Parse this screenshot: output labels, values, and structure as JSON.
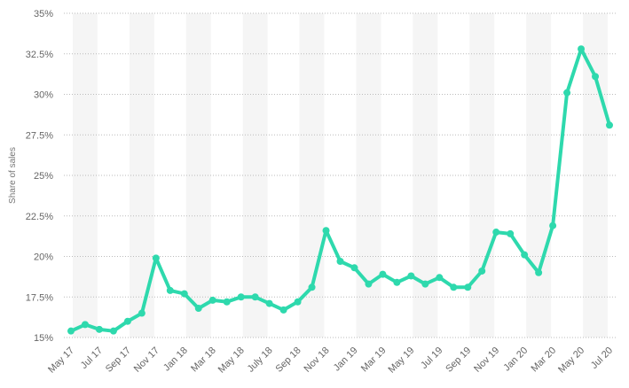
{
  "chart_data": {
    "type": "line",
    "title": "",
    "xlabel": "",
    "ylabel": "Share of sales",
    "x": [
      "May 17",
      "Jun 17",
      "Jul 17",
      "Aug 17",
      "Sep 17",
      "Oct 17",
      "Nov 17",
      "Dec 17",
      "Jan 18",
      "Feb 18",
      "Mar 18",
      "Apr 18",
      "May 18",
      "Jun 18",
      "July 18",
      "Aug 18",
      "Sep 18",
      "Oct 18",
      "Nov 18",
      "Dec 18",
      "Jan 19",
      "Feb 19",
      "Mar 19",
      "Apr 19",
      "May 19",
      "Jun 19",
      "Jul 19",
      "Aug 19",
      "Sep 19",
      "Oct 19",
      "Nov 19",
      "Dec 19",
      "Jan 20",
      "Feb 20",
      "Mar 20",
      "Apr 20",
      "May 20",
      "Jun 20",
      "Jul 20"
    ],
    "x_tick_labels": [
      "May 17",
      "Jul 17",
      "Sep 17",
      "Nov 17",
      "Jan 18",
      "Mar 18",
      "May 18",
      "July 18",
      "Sep 18",
      "Nov 18",
      "Jan 19",
      "Mar 19",
      "May 19",
      "Jul 19",
      "Sep 19",
      "Nov 19",
      "Jan 20",
      "Mar 20",
      "May 20",
      "Jul 20"
    ],
    "series": [
      {
        "values": [
          15.4,
          15.8,
          15.5,
          15.4,
          16.0,
          16.5,
          19.9,
          17.9,
          17.7,
          16.8,
          17.3,
          17.2,
          17.5,
          17.5,
          17.1,
          16.7,
          17.2,
          18.1,
          21.6,
          19.7,
          19.3,
          18.3,
          18.9,
          18.4,
          18.8,
          18.3,
          18.7,
          18.1,
          18.1,
          19.1,
          21.5,
          21.4,
          20.1,
          19.0,
          21.9,
          30.1,
          32.8,
          31.1,
          28.1
        ]
      }
    ],
    "y_ticks": [
      "15%",
      "17.5%",
      "20%",
      "22.5%",
      "25%",
      "27.5%",
      "30%",
      "32.5%",
      "35%"
    ],
    "ylim": [
      15,
      35
    ],
    "grid": true,
    "line_color": "#2ed9ad",
    "band_color": "#f5f5f5",
    "grid_color": "#bbbbbb"
  }
}
